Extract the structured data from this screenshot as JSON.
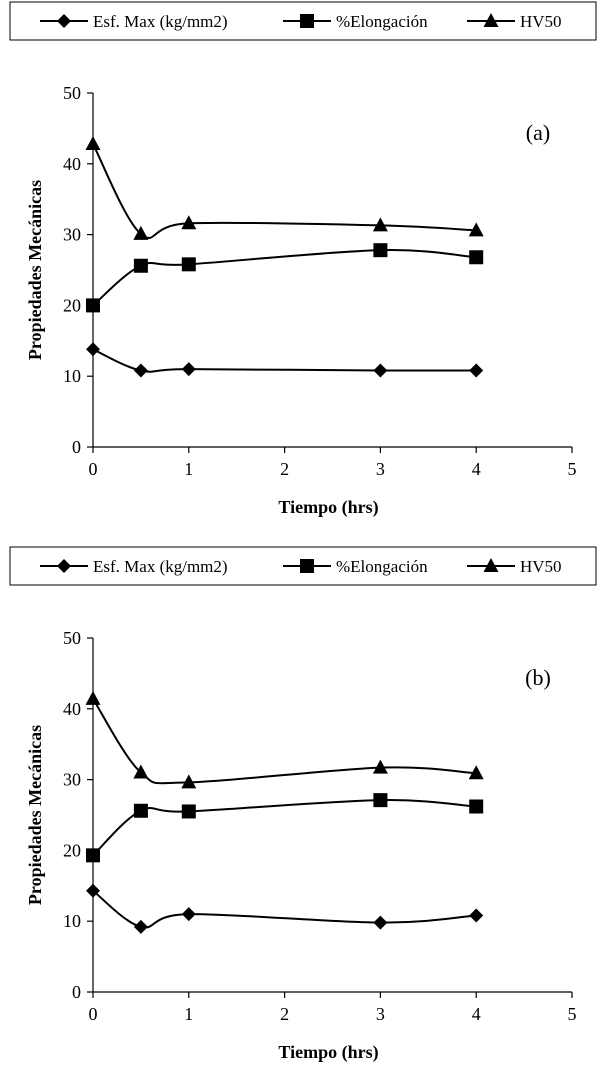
{
  "chart_data": [
    {
      "type": "line",
      "panel_label": "(a)",
      "xlabel": "Tiempo (hrs)",
      "ylabel": "Propiedades Mecánicas",
      "xlim": [
        0,
        5
      ],
      "ylim": [
        0,
        50
      ],
      "xticks": [
        "0",
        "1",
        "2",
        "3",
        "4",
        "5"
      ],
      "yticks": [
        "0",
        "10",
        "20",
        "30",
        "40",
        "50"
      ],
      "legend_position": "top",
      "grid": false,
      "x": [
        0,
        0.5,
        1,
        3,
        4
      ],
      "series": [
        {
          "name": "Esf. Max (kg/mm2)",
          "marker": "diamond",
          "values": [
            13.8,
            10.8,
            11.0,
            10.8,
            10.8
          ]
        },
        {
          "name": "%Elongación",
          "marker": "square",
          "values": [
            20.0,
            25.6,
            25.8,
            27.8,
            26.8
          ]
        },
        {
          "name": "HV50",
          "marker": "triangle",
          "values": [
            42.8,
            30.1,
            31.6,
            31.3,
            30.6
          ]
        }
      ]
    },
    {
      "type": "line",
      "panel_label": "(b)",
      "xlabel": "Tiempo (hrs)",
      "ylabel": "Propiedades Mecánicas",
      "xlim": [
        0,
        5
      ],
      "ylim": [
        0,
        50
      ],
      "xticks": [
        "0",
        "1",
        "2",
        "3",
        "4",
        "5"
      ],
      "yticks": [
        "0",
        "10",
        "20",
        "30",
        "40",
        "50"
      ],
      "legend_position": "top",
      "grid": false,
      "x": [
        0,
        0.5,
        1,
        3,
        4
      ],
      "series": [
        {
          "name": "Esf. Max (kg/mm2)",
          "marker": "diamond",
          "values": [
            14.3,
            9.2,
            11.0,
            9.8,
            10.8
          ]
        },
        {
          "name": "%Elongación",
          "marker": "square",
          "values": [
            19.3,
            25.6,
            25.5,
            27.1,
            26.2
          ]
        },
        {
          "name": "HV50",
          "marker": "triangle",
          "values": [
            41.4,
            31.0,
            29.6,
            31.7,
            30.9
          ]
        }
      ]
    }
  ]
}
